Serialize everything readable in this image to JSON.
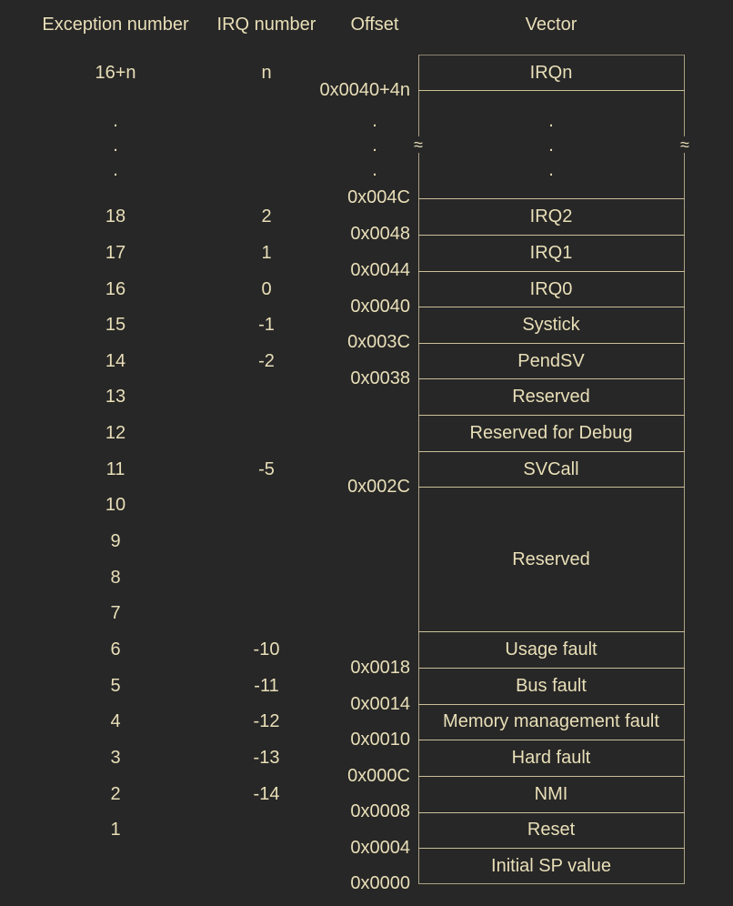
{
  "headers": {
    "exception": "Exception number",
    "irq": "IRQ number",
    "offset": "Offset",
    "vector": "Vector"
  },
  "exceptions": [
    "16+n",
    ".",
    ".",
    ".",
    "18",
    "17",
    "16",
    "15",
    "14",
    "13",
    "12",
    "11",
    "10",
    "9",
    "8",
    "7",
    "6",
    "5",
    "4",
    "3",
    "2",
    "1"
  ],
  "irqs": [
    "n",
    "2",
    "1",
    "0",
    "-1",
    "-2",
    "-5",
    "-10",
    "-11",
    "-12",
    "-13",
    "-14"
  ],
  "offsets": [
    "0x0040+4n",
    ".",
    ".",
    ".",
    "0x004C",
    "0x0048",
    "0x0044",
    "0x0040",
    "0x003C",
    "0x0038",
    "0x002C",
    "0x0018",
    "0x0014",
    "0x0010",
    "0x000C",
    "0x0008",
    "0x0004",
    "0x0000"
  ],
  "vectors": [
    "IRQn",
    ".",
    ".",
    ".",
    "IRQ2",
    "IRQ1",
    "IRQ0",
    "Systick",
    "PendSV",
    "Reserved",
    "Reserved for Debug",
    "SVCall",
    "Reserved",
    "Usage fault",
    "Bus fault",
    "Memory management fault",
    "Hard fault",
    "NMI",
    "Reset",
    "Initial SP value"
  ],
  "break_symbol": "≈"
}
